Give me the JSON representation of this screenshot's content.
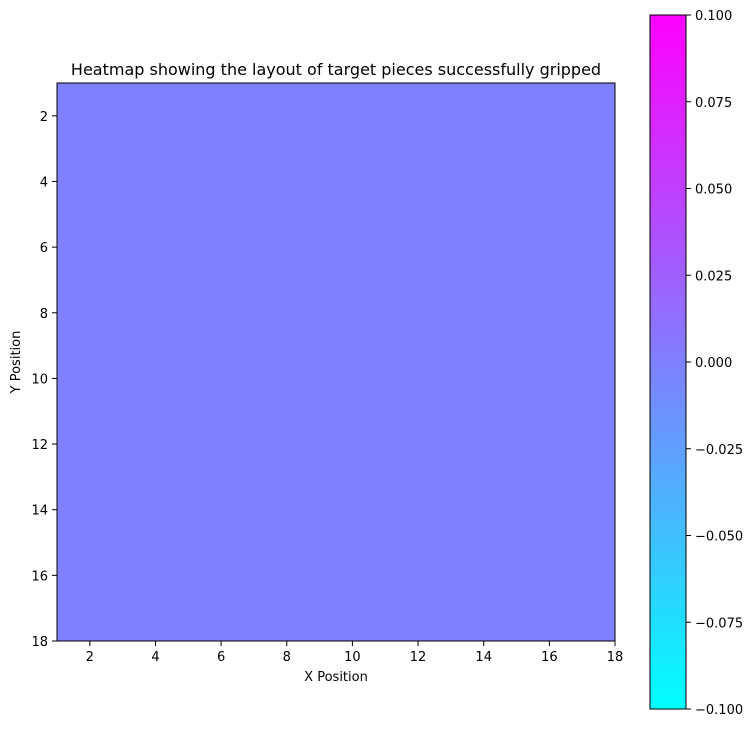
{
  "chart_data": {
    "type": "heatmap",
    "title": "Heatmap showing the layout of target pieces successfully gripped",
    "xlabel": "X Position",
    "ylabel": "Y Position",
    "xlim": [
      1,
      18
    ],
    "ylim": [
      18,
      1
    ],
    "y_axis_inverted": true,
    "x_ticks": [
      "2",
      "4",
      "6",
      "8",
      "10",
      "12",
      "14",
      "16",
      "18"
    ],
    "y_ticks": [
      "2",
      "4",
      "6",
      "8",
      "10",
      "12",
      "14",
      "16",
      "18"
    ],
    "grid": false,
    "values_uniform": 0.0,
    "cell_color": "#8080ff",
    "colorbar": {
      "colormap": "cool",
      "range": [
        -0.1,
        0.1
      ],
      "colors": [
        "#00ffff",
        "#ff00ff"
      ],
      "ticks": [
        "0.100",
        "0.075",
        "0.050",
        "0.025",
        "0.000",
        "−0.025",
        "−0.050",
        "−0.075",
        "−0.100"
      ]
    }
  }
}
